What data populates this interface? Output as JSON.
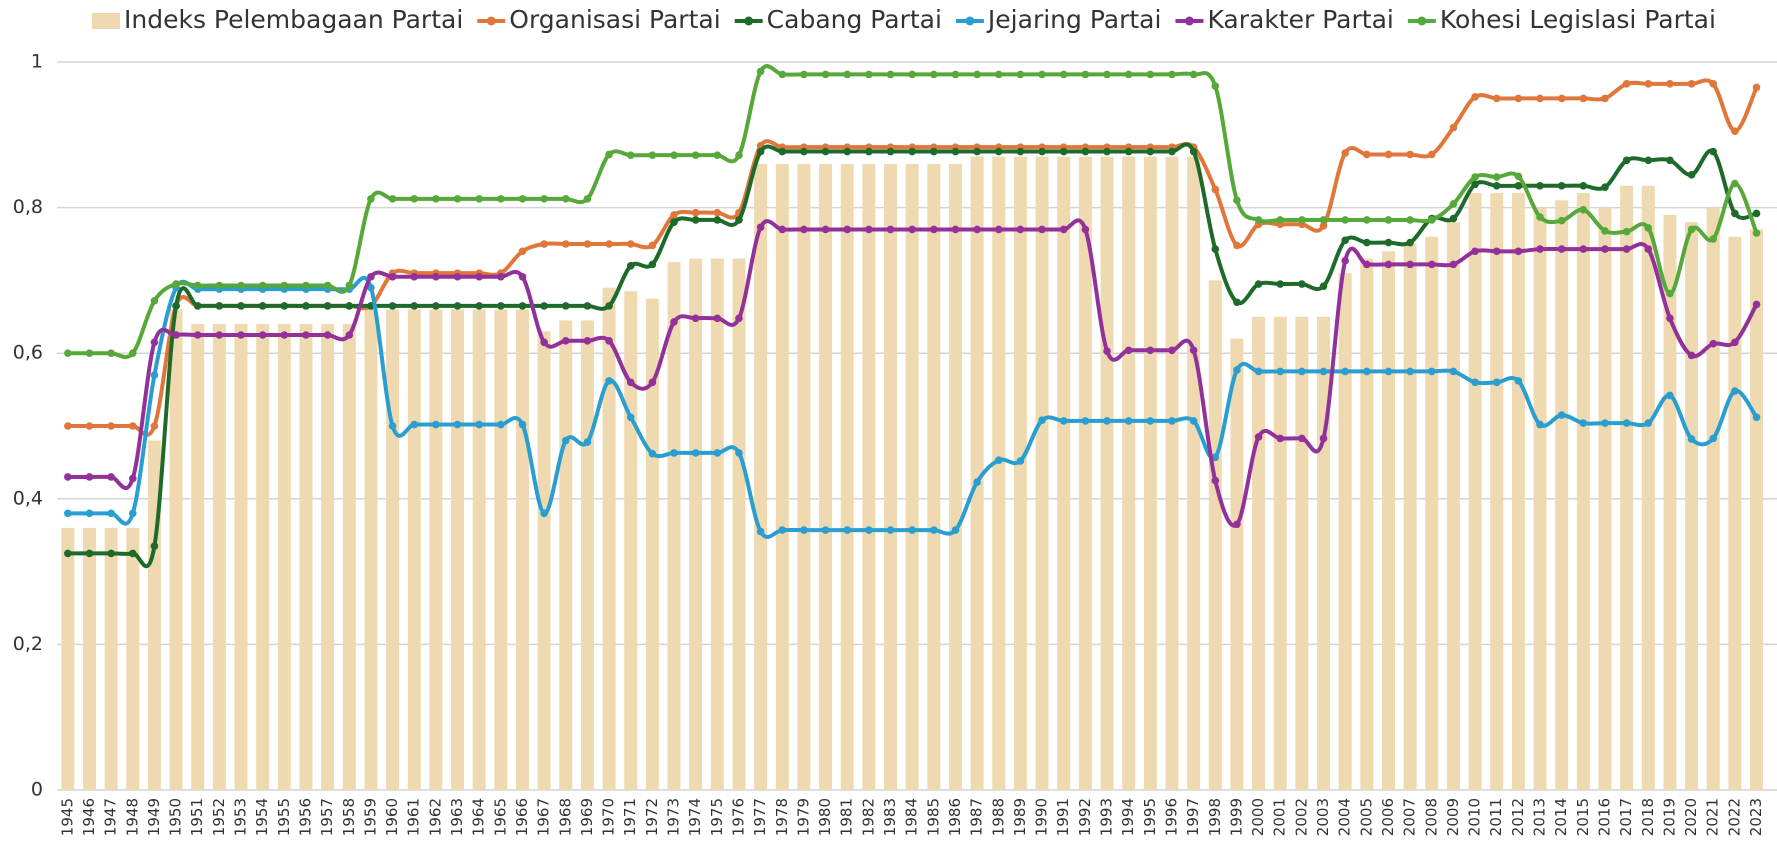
{
  "chart_data": {
    "type": "bar-line",
    "categories": [
      "1945",
      "1946",
      "1947",
      "1948",
      "1949",
      "1950",
      "1951",
      "1952",
      "1953",
      "1954",
      "1955",
      "1956",
      "1957",
      "1958",
      "1959",
      "1960",
      "1961",
      "1962",
      "1963",
      "1964",
      "1965",
      "1966",
      "1967",
      "1968",
      "1969",
      "1970",
      "1971",
      "1972",
      "1973",
      "1974",
      "1975",
      "1976",
      "1977",
      "1978",
      "1979",
      "1980",
      "1981",
      "1982",
      "1983",
      "1984",
      "1985",
      "1986",
      "1987",
      "1988",
      "1989",
      "1990",
      "1991",
      "1992",
      "1993",
      "1994",
      "1995",
      "1996",
      "1997",
      "1998",
      "1999",
      "2000",
      "2001",
      "2002",
      "2003",
      "2004",
      "2005",
      "2006",
      "2007",
      "2008",
      "2009",
      "2010",
      "2011",
      "2012",
      "2013",
      "2014",
      "2015",
      "2016",
      "2017",
      "2018",
      "2019",
      "2020",
      "2021",
      "2022",
      "2023"
    ],
    "series": [
      {
        "name": "Indeks Pelembagaan Partai",
        "kind": "bar",
        "color": "#efd9b0",
        "values": [
          0.36,
          0.36,
          0.36,
          0.36,
          0.48,
          0.66,
          0.64,
          0.64,
          0.64,
          0.64,
          0.64,
          0.64,
          0.64,
          0.64,
          0.66,
          0.66,
          0.66,
          0.66,
          0.66,
          0.66,
          0.66,
          0.66,
          0.63,
          0.645,
          0.645,
          0.69,
          0.685,
          0.675,
          0.725,
          0.73,
          0.73,
          0.73,
          0.86,
          0.86,
          0.86,
          0.86,
          0.86,
          0.86,
          0.86,
          0.86,
          0.86,
          0.86,
          0.87,
          0.87,
          0.87,
          0.87,
          0.87,
          0.87,
          0.87,
          0.87,
          0.87,
          0.87,
          0.87,
          0.7,
          0.62,
          0.65,
          0.65,
          0.65,
          0.65,
          0.71,
          0.73,
          0.74,
          0.75,
          0.76,
          0.78,
          0.82,
          0.82,
          0.82,
          0.8,
          0.81,
          0.82,
          0.8,
          0.83,
          0.83,
          0.79,
          0.78,
          0.8,
          0.76,
          0.77
        ]
      },
      {
        "name": "Organisasi Partai",
        "kind": "line",
        "color": "#e0763a",
        "values": [
          0.5,
          0.5,
          0.5,
          0.5,
          0.5,
          0.665,
          0.665,
          0.665,
          0.665,
          0.665,
          0.665,
          0.665,
          0.665,
          0.665,
          0.665,
          0.71,
          0.71,
          0.71,
          0.71,
          0.71,
          0.71,
          0.74,
          0.75,
          0.75,
          0.75,
          0.75,
          0.75,
          0.748,
          0.79,
          0.793,
          0.793,
          0.793,
          0.885,
          0.883,
          0.883,
          0.883,
          0.883,
          0.883,
          0.883,
          0.883,
          0.883,
          0.883,
          0.883,
          0.883,
          0.883,
          0.883,
          0.883,
          0.883,
          0.883,
          0.883,
          0.883,
          0.883,
          0.883,
          0.825,
          0.748,
          0.777,
          0.777,
          0.777,
          0.775,
          0.875,
          0.873,
          0.873,
          0.873,
          0.873,
          0.91,
          0.952,
          0.95,
          0.95,
          0.95,
          0.95,
          0.95,
          0.95,
          0.97,
          0.97,
          0.97,
          0.97,
          0.97,
          0.905,
          0.965
        ]
      },
      {
        "name": "Cabang Partai",
        "kind": "line",
        "color": "#1d6a2b",
        "values": [
          0.325,
          0.325,
          0.325,
          0.325,
          0.335,
          0.665,
          0.665,
          0.665,
          0.665,
          0.665,
          0.665,
          0.665,
          0.665,
          0.665,
          0.665,
          0.665,
          0.665,
          0.665,
          0.665,
          0.665,
          0.665,
          0.665,
          0.665,
          0.665,
          0.665,
          0.665,
          0.72,
          0.722,
          0.78,
          0.783,
          0.783,
          0.783,
          0.877,
          0.877,
          0.877,
          0.877,
          0.877,
          0.877,
          0.877,
          0.877,
          0.877,
          0.877,
          0.877,
          0.877,
          0.877,
          0.877,
          0.877,
          0.877,
          0.877,
          0.877,
          0.877,
          0.877,
          0.877,
          0.743,
          0.67,
          0.695,
          0.695,
          0.695,
          0.692,
          0.755,
          0.752,
          0.752,
          0.752,
          0.785,
          0.785,
          0.832,
          0.83,
          0.83,
          0.83,
          0.83,
          0.83,
          0.828,
          0.865,
          0.865,
          0.865,
          0.845,
          0.877,
          0.792,
          0.792
        ]
      },
      {
        "name": "Jejaring Partai",
        "kind": "line",
        "color": "#2a9ed0",
        "values": [
          0.38,
          0.38,
          0.38,
          0.38,
          0.57,
          0.69,
          0.688,
          0.688,
          0.688,
          0.688,
          0.688,
          0.688,
          0.688,
          0.688,
          0.69,
          0.5,
          0.502,
          0.502,
          0.502,
          0.502,
          0.502,
          0.502,
          0.38,
          0.48,
          0.478,
          0.562,
          0.512,
          0.462,
          0.463,
          0.463,
          0.463,
          0.463,
          0.355,
          0.357,
          0.357,
          0.357,
          0.357,
          0.357,
          0.357,
          0.357,
          0.357,
          0.357,
          0.423,
          0.453,
          0.452,
          0.508,
          0.507,
          0.507,
          0.507,
          0.507,
          0.507,
          0.507,
          0.507,
          0.457,
          0.577,
          0.575,
          0.575,
          0.575,
          0.575,
          0.575,
          0.575,
          0.575,
          0.575,
          0.575,
          0.575,
          0.56,
          0.56,
          0.562,
          0.502,
          0.515,
          0.504,
          0.504,
          0.504,
          0.504,
          0.542,
          0.482,
          0.483,
          0.548,
          0.512
        ]
      },
      {
        "name": "Karakter Partai",
        "kind": "line",
        "color": "#92319a",
        "values": [
          0.43,
          0.43,
          0.43,
          0.428,
          0.615,
          0.625,
          0.625,
          0.625,
          0.625,
          0.625,
          0.625,
          0.625,
          0.625,
          0.625,
          0.705,
          0.705,
          0.705,
          0.705,
          0.705,
          0.705,
          0.705,
          0.705,
          0.615,
          0.617,
          0.617,
          0.617,
          0.56,
          0.56,
          0.643,
          0.648,
          0.648,
          0.648,
          0.773,
          0.77,
          0.77,
          0.77,
          0.77,
          0.77,
          0.77,
          0.77,
          0.77,
          0.77,
          0.77,
          0.77,
          0.77,
          0.77,
          0.77,
          0.77,
          0.603,
          0.604,
          0.604,
          0.604,
          0.604,
          0.425,
          0.365,
          0.485,
          0.483,
          0.483,
          0.483,
          0.727,
          0.722,
          0.722,
          0.722,
          0.722,
          0.722,
          0.74,
          0.74,
          0.74,
          0.743,
          0.743,
          0.743,
          0.743,
          0.743,
          0.743,
          0.648,
          0.597,
          0.613,
          0.615,
          0.667
        ]
      },
      {
        "name": "Kohesi Legislasi Partai",
        "kind": "line",
        "color": "#57a83a",
        "values": [
          0.6,
          0.6,
          0.6,
          0.6,
          0.672,
          0.695,
          0.693,
          0.693,
          0.693,
          0.693,
          0.693,
          0.693,
          0.693,
          0.693,
          0.812,
          0.812,
          0.812,
          0.812,
          0.812,
          0.812,
          0.812,
          0.812,
          0.812,
          0.812,
          0.812,
          0.873,
          0.872,
          0.872,
          0.872,
          0.872,
          0.872,
          0.872,
          0.987,
          0.983,
          0.983,
          0.983,
          0.983,
          0.983,
          0.983,
          0.983,
          0.983,
          0.983,
          0.983,
          0.983,
          0.983,
          0.983,
          0.983,
          0.983,
          0.983,
          0.983,
          0.983,
          0.983,
          0.983,
          0.967,
          0.81,
          0.783,
          0.783,
          0.783,
          0.783,
          0.783,
          0.783,
          0.783,
          0.783,
          0.783,
          0.805,
          0.842,
          0.842,
          0.843,
          0.787,
          0.782,
          0.797,
          0.768,
          0.767,
          0.772,
          0.682,
          0.77,
          0.757,
          0.833,
          0.765
        ]
      }
    ],
    "ylim": [
      0,
      1
    ],
    "yticks": [
      0,
      {
        "value": 0.2,
        "label": "0,2"
      },
      {
        "value": 0.4,
        "label": "0,4"
      },
      {
        "value": 0.6,
        "label": "0,6"
      },
      {
        "value": 0.8,
        "label": "0,8"
      },
      1
    ],
    "grid": true,
    "legend": "top"
  }
}
